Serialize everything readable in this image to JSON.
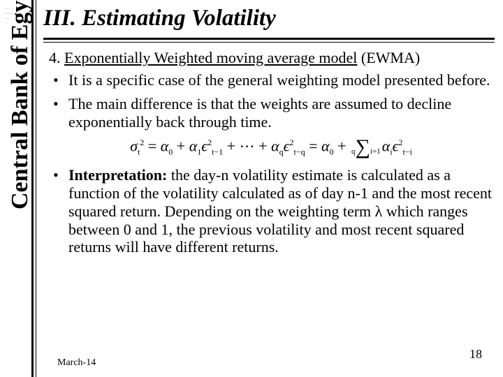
{
  "vertical_label": "Central Bank of Egypt",
  "title": "III. Estimating Volatility",
  "subhead_prefix": "4. ",
  "subhead_underlined": "Exponentially Weighted moving average model",
  "subhead_suffix": " (EWMA)",
  "bullets_a": [
    "It is a specific case of the general weighting model presented before.",
    "The main difference is that the weights are assumed to decline exponentially back through time."
  ],
  "formula": {
    "lhs": "σ",
    "lhs_sub": "t",
    "lhs_sup": "2",
    "eq": " = ",
    "a0": "α",
    "a0_sub": "0",
    "plus": " + ",
    "a1": "α",
    "a1_sub": "1",
    "e1": "ϵ",
    "e1_sub": "t−1",
    "e1_sup": "2",
    "dots": " + ⋯ + ",
    "aq": "α",
    "aq_sub": "q",
    "eq_": "ϵ",
    "eq_sub": "t−q",
    "eq_sup": "2",
    "eq2": " = ",
    "a0b": "α",
    "a0b_sub": "0",
    "sum_top": "q",
    "sum_bot": "i=1",
    "ai": "α",
    "ai_sub": "i",
    "ei": "ϵ",
    "ei_sub": "t−i",
    "ei_sup": "2"
  },
  "bullets_b": [
    "the day-n volatility estimate is calculated as a function of the volatility calculated as of day n-1 and the most recent squared return. Depending on the weighting term λ which ranges between 0 and 1, the previous volatility and most recent squared returns will have different returns."
  ],
  "interp_label": "Interpretation: ",
  "footer": {
    "date": "March-14",
    "page": "18"
  },
  "colors": {
    "text": "#000000",
    "bg": "#ffffff"
  }
}
